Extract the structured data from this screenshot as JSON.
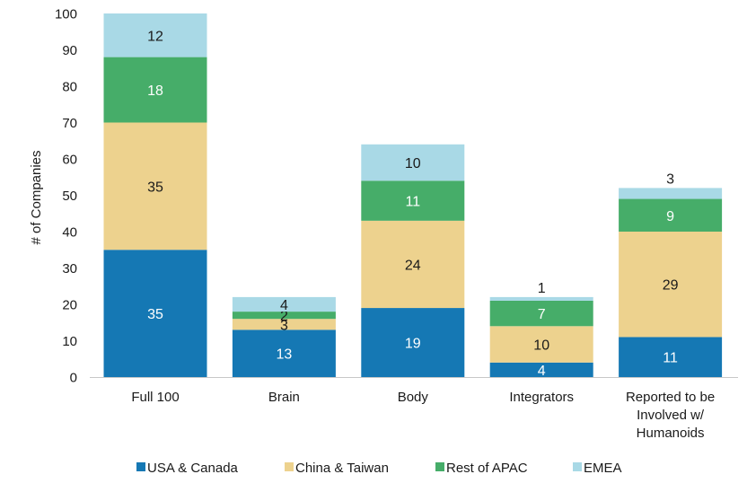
{
  "chart_data": {
    "type": "bar",
    "stacked": true,
    "title": "",
    "xlabel": "",
    "ylabel": "# of Companies",
    "ylim": [
      0,
      100
    ],
    "yticks": [
      0,
      10,
      20,
      30,
      40,
      50,
      60,
      70,
      80,
      90,
      100
    ],
    "grid": false,
    "legend_position": "bottom",
    "categories": [
      "Full 100",
      "Brain",
      "Body",
      "Integrators",
      "Reported to be Involved w/ Humanoids"
    ],
    "category_lines": [
      [
        "Full 100"
      ],
      [
        "Brain"
      ],
      [
        "Body"
      ],
      [
        "Integrators"
      ],
      [
        "Reported to be",
        "Involved w/",
        "Humanoids"
      ]
    ],
    "series": [
      {
        "name": "USA & Canada",
        "color": "#1578b4",
        "label_color": "#ffffff",
        "values": [
          35,
          13,
          19,
          4,
          11
        ]
      },
      {
        "name": "China & Taiwan",
        "color": "#edd28e",
        "label_color": "#1a1a1a",
        "values": [
          35,
          3,
          24,
          10,
          29
        ]
      },
      {
        "name": "Rest of APAC",
        "color": "#46ad69",
        "label_color": "#ffffff",
        "values": [
          18,
          2,
          11,
          7,
          9
        ]
      },
      {
        "name": "EMEA",
        "color": "#a9d9e6",
        "label_color": "#1a1a1a",
        "values": [
          12,
          4,
          10,
          1,
          3
        ]
      }
    ]
  }
}
